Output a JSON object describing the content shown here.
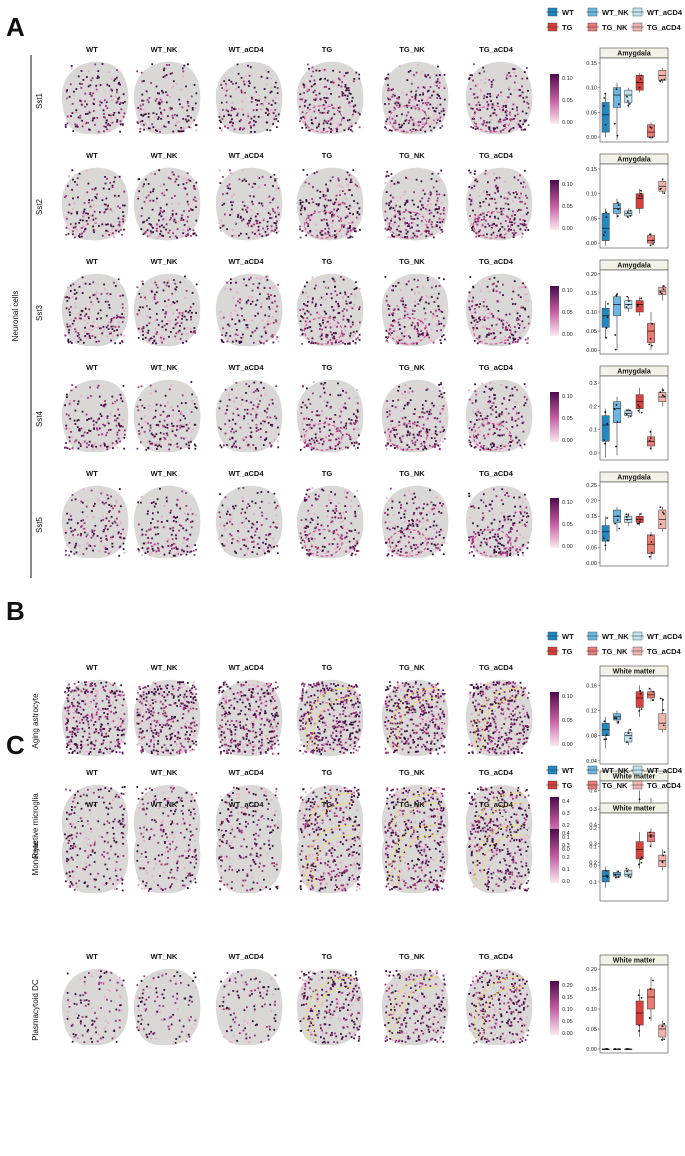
{
  "colors": {
    "WT": "#1f89c4",
    "WT_NK": "#6cb8e3",
    "WT_aCD4": "#bfe3f0",
    "TG": "#d8403a",
    "TG_NK": "#e87b72",
    "TG_aCD4": "#f2b3ad",
    "tissue": "#d9d8d6",
    "dark": "#3b0a3f",
    "mid": "#9c2f7e",
    "light": "#e9a9c8",
    "roiA": "#d0408f",
    "roiY": "#f2e23a",
    "outlier": "#4b4bd9"
  },
  "groups": [
    "WT",
    "WT_NK",
    "WT_aCD4",
    "TG",
    "TG_NK",
    "TG_aCD4"
  ],
  "panelA": {
    "label": "A",
    "side_label": "Neuronal cells",
    "legend": [
      "WT",
      "WT_NK",
      "WT_aCD4",
      "TG",
      "TG_NK",
      "TG_aCD4"
    ],
    "rows": [
      {
        "name": "Sst1",
        "colorbar": [
          "0.10",
          "0.05",
          "0.00"
        ],
        "box_title": "Amygdala",
        "yticks": [
          "0.15",
          "0.10",
          "0.05",
          "0.00"
        ],
        "ylim": [
          -0.01,
          0.16
        ],
        "boxes": [
          {
            "q1": 0.01,
            "med": 0.045,
            "q3": 0.07,
            "lo": 0.0,
            "hi": 0.09
          },
          {
            "q1": 0.06,
            "med": 0.085,
            "q3": 0.1,
            "lo": -0.005,
            "hi": 0.11
          },
          {
            "q1": 0.07,
            "med": 0.085,
            "q3": 0.095,
            "lo": 0.06,
            "hi": 0.1
          },
          {
            "q1": 0.095,
            "med": 0.11,
            "q3": 0.125,
            "lo": 0.09,
            "hi": 0.13
          },
          {
            "q1": 0.0,
            "med": 0.01,
            "q3": 0.025,
            "lo": -0.005,
            "hi": 0.03
          },
          {
            "q1": 0.115,
            "med": 0.125,
            "q3": 0.135,
            "lo": 0.11,
            "hi": 0.14
          }
        ]
      },
      {
        "name": "Sst2",
        "colorbar": [
          "0.10",
          "0.05",
          "0.00"
        ],
        "box_title": "Amygdala",
        "yticks": [
          "0.15",
          "0.10",
          "0.05",
          "0.00"
        ],
        "ylim": [
          -0.01,
          0.16
        ],
        "boxes": [
          {
            "q1": 0.005,
            "med": 0.03,
            "q3": 0.06,
            "lo": -0.005,
            "hi": 0.07
          },
          {
            "q1": 0.06,
            "med": 0.07,
            "q3": 0.08,
            "lo": 0.05,
            "hi": 0.09
          },
          {
            "q1": 0.055,
            "med": 0.06,
            "q3": 0.065,
            "lo": 0.05,
            "hi": 0.07
          },
          {
            "q1": 0.07,
            "med": 0.09,
            "q3": 0.1,
            "lo": 0.06,
            "hi": 0.11
          },
          {
            "q1": 0.0,
            "med": 0.005,
            "q3": 0.015,
            "lo": -0.005,
            "hi": 0.02
          },
          {
            "q1": 0.105,
            "med": 0.115,
            "q3": 0.125,
            "lo": 0.1,
            "hi": 0.13
          }
        ]
      },
      {
        "name": "Sst3",
        "colorbar": [
          "0.10",
          "0.05",
          "0.00"
        ],
        "box_title": "Amygdala",
        "yticks": [
          "0.20",
          "0.15",
          "0.10",
          "0.05",
          "0.00"
        ],
        "ylim": [
          -0.01,
          0.21
        ],
        "boxes": [
          {
            "q1": 0.06,
            "med": 0.09,
            "q3": 0.11,
            "lo": 0.03,
            "hi": 0.13
          },
          {
            "q1": 0.09,
            "med": 0.12,
            "q3": 0.14,
            "lo": 0.0,
            "hi": 0.15
          },
          {
            "q1": 0.11,
            "med": 0.12,
            "q3": 0.13,
            "lo": 0.1,
            "hi": 0.14
          },
          {
            "q1": 0.1,
            "med": 0.12,
            "q3": 0.13,
            "lo": 0.09,
            "hi": 0.14
          },
          {
            "q1": 0.02,
            "med": 0.05,
            "q3": 0.07,
            "lo": 0.0,
            "hi": 0.1
          },
          {
            "q1": 0.145,
            "med": 0.155,
            "q3": 0.165,
            "lo": 0.13,
            "hi": 0.17
          }
        ]
      },
      {
        "name": "Sst4",
        "colorbar": [
          "0.10",
          "0.05",
          "0.00"
        ],
        "box_title": "Amygdala",
        "yticks": [
          "0.3",
          "0.2",
          "0.1",
          "0.0"
        ],
        "ylim": [
          -0.03,
          0.33
        ],
        "boxes": [
          {
            "q1": 0.05,
            "med": 0.12,
            "q3": 0.16,
            "lo": -0.02,
            "hi": 0.19
          },
          {
            "q1": 0.13,
            "med": 0.19,
            "q3": 0.22,
            "lo": -0.01,
            "hi": 0.24
          },
          {
            "q1": 0.16,
            "med": 0.17,
            "q3": 0.18,
            "lo": 0.15,
            "hi": 0.19
          },
          {
            "q1": 0.19,
            "med": 0.22,
            "q3": 0.25,
            "lo": 0.17,
            "hi": 0.28
          },
          {
            "q1": 0.03,
            "med": 0.05,
            "q3": 0.07,
            "lo": 0.01,
            "hi": 0.1
          },
          {
            "q1": 0.22,
            "med": 0.24,
            "q3": 0.26,
            "lo": 0.2,
            "hi": 0.28
          }
        ]
      },
      {
        "name": "Sst5",
        "colorbar": [
          "0.10",
          "0.05",
          "0.00"
        ],
        "box_title": "Amygdala",
        "yticks": [
          "0.25",
          "0.20",
          "0.15",
          "0.10",
          "0.05",
          "0.00"
        ],
        "ylim": [
          -0.01,
          0.26
        ],
        "boxes": [
          {
            "q1": 0.07,
            "med": 0.1,
            "q3": 0.12,
            "lo": 0.04,
            "hi": 0.15
          },
          {
            "q1": 0.13,
            "med": 0.15,
            "q3": 0.17,
            "lo": 0.1,
            "hi": 0.18
          },
          {
            "q1": 0.13,
            "med": 0.14,
            "q3": 0.15,
            "lo": 0.12,
            "hi": 0.16
          },
          {
            "q1": 0.13,
            "med": 0.14,
            "q3": 0.15,
            "lo": 0.12,
            "hi": 0.16
          },
          {
            "q1": 0.03,
            "med": 0.06,
            "q3": 0.09,
            "lo": 0.01,
            "hi": 0.1
          },
          {
            "q1": 0.11,
            "med": 0.14,
            "q3": 0.17,
            "lo": 0.1,
            "hi": 0.18
          }
        ]
      }
    ]
  },
  "panelB": {
    "label": "B",
    "legend": [
      "WT",
      "WT_NK",
      "WT_aCD4",
      "TG",
      "TG_NK",
      "TG_aCD4"
    ],
    "rows": [
      {
        "name": "Aging astrocyte",
        "colorbar": [
          "0.10",
          "0.05",
          "0.00"
        ],
        "box_title": "White matter",
        "yticks": [
          "0.16",
          "0.12",
          "0.08",
          "0.04"
        ],
        "ylim": [
          0.035,
          0.175
        ],
        "boxes": [
          {
            "q1": 0.08,
            "med": 0.09,
            "q3": 0.1,
            "lo": 0.06,
            "hi": 0.11
          },
          {
            "q1": 0.105,
            "med": 0.11,
            "q3": 0.115,
            "lo": 0.1,
            "hi": 0.12
          },
          {
            "q1": 0.07,
            "med": 0.08,
            "q3": 0.085,
            "lo": 0.065,
            "hi": 0.09
          },
          {
            "q1": 0.125,
            "med": 0.14,
            "q3": 0.15,
            "lo": 0.11,
            "hi": 0.16
          },
          {
            "q1": 0.14,
            "med": 0.145,
            "q3": 0.15,
            "lo": 0.135,
            "hi": 0.155
          },
          {
            "q1": 0.09,
            "med": 0.1,
            "q3": 0.115,
            "lo": 0.085,
            "hi": 0.14
          }
        ]
      },
      {
        "name": "Reactive microglia",
        "colorbar": [
          "0.4",
          "0.3",
          "0.2",
          "0.1",
          "0.0"
        ],
        "box_title": "White matter",
        "yticks": [
          "0.4",
          "0.3",
          "0.2",
          "0.1",
          "0.0"
        ],
        "ylim": [
          -0.02,
          0.45
        ],
        "boxes": [
          {
            "q1": 0.05,
            "med": 0.06,
            "q3": 0.08,
            "lo": 0.03,
            "hi": 0.09
          },
          {
            "q1": 0.065,
            "med": 0.075,
            "q3": 0.085,
            "lo": 0.05,
            "hi": 0.1
          },
          {
            "q1": 0.07,
            "med": 0.08,
            "q3": 0.09,
            "lo": 0.06,
            "hi": 0.1
          },
          {
            "q1": 0.2,
            "med": 0.27,
            "q3": 0.32,
            "lo": 0.1,
            "hi": 0.4
          },
          {
            "q1": 0.27,
            "med": 0.3,
            "q3": 0.33,
            "lo": 0.23,
            "hi": 0.36
          },
          {
            "q1": 0.12,
            "med": 0.17,
            "q3": 0.2,
            "lo": 0.1,
            "hi": 0.23
          }
        ]
      }
    ]
  },
  "panelC": {
    "label": "C",
    "legend": [
      "WT",
      "WT_NK",
      "WT_aCD4",
      "TG",
      "TG_NK",
      "TG_aCD4"
    ],
    "rows": [
      {
        "name": "Monocyte",
        "colorbar": [
          "0.4",
          "0.3",
          "0.2",
          "0.1",
          "0.0"
        ],
        "box_title": "White matter",
        "yticks": [
          "0.4",
          "0.3",
          "0.2",
          "0.1"
        ],
        "ylim": [
          0.0,
          0.46
        ],
        "boxes": [
          {
            "q1": 0.1,
            "med": 0.13,
            "q3": 0.16,
            "lo": 0.07,
            "hi": 0.18
          },
          {
            "q1": 0.13,
            "med": 0.14,
            "q3": 0.15,
            "lo": 0.12,
            "hi": 0.16
          },
          {
            "q1": 0.13,
            "med": 0.14,
            "q3": 0.16,
            "lo": 0.12,
            "hi": 0.17
          },
          {
            "q1": 0.22,
            "med": 0.27,
            "q3": 0.31,
            "lo": 0.17,
            "hi": 0.36
          },
          {
            "q1": 0.31,
            "med": 0.34,
            "q3": 0.36,
            "lo": 0.28,
            "hi": 0.38
          },
          {
            "q1": 0.18,
            "med": 0.21,
            "q3": 0.24,
            "lo": 0.16,
            "hi": 0.27
          }
        ]
      },
      {
        "name": "Plasmacytoid DC",
        "colorbar": [
          "0.20",
          "0.15",
          "0.10",
          "0.05",
          "0.00"
        ],
        "box_title": "White matter",
        "yticks": [
          "0.20",
          "0.15",
          "0.10",
          "0.05",
          "0.00"
        ],
        "ylim": [
          -0.01,
          0.21
        ],
        "boxes": [
          {
            "q1": 0.0,
            "med": 0.0,
            "q3": 0.0,
            "lo": 0.0,
            "hi": 0.0
          },
          {
            "q1": 0.0,
            "med": 0.0,
            "q3": 0.0,
            "lo": 0.0,
            "hi": 0.0
          },
          {
            "q1": 0.0,
            "med": 0.0,
            "q3": 0.0,
            "lo": 0.0,
            "hi": 0.0
          },
          {
            "q1": 0.06,
            "med": 0.09,
            "q3": 0.12,
            "lo": 0.03,
            "hi": 0.15
          },
          {
            "q1": 0.1,
            "med": 0.13,
            "q3": 0.15,
            "lo": 0.07,
            "hi": 0.18
          },
          {
            "q1": 0.03,
            "med": 0.05,
            "q3": 0.06,
            "lo": 0.02,
            "hi": 0.07
          }
        ]
      }
    ]
  }
}
